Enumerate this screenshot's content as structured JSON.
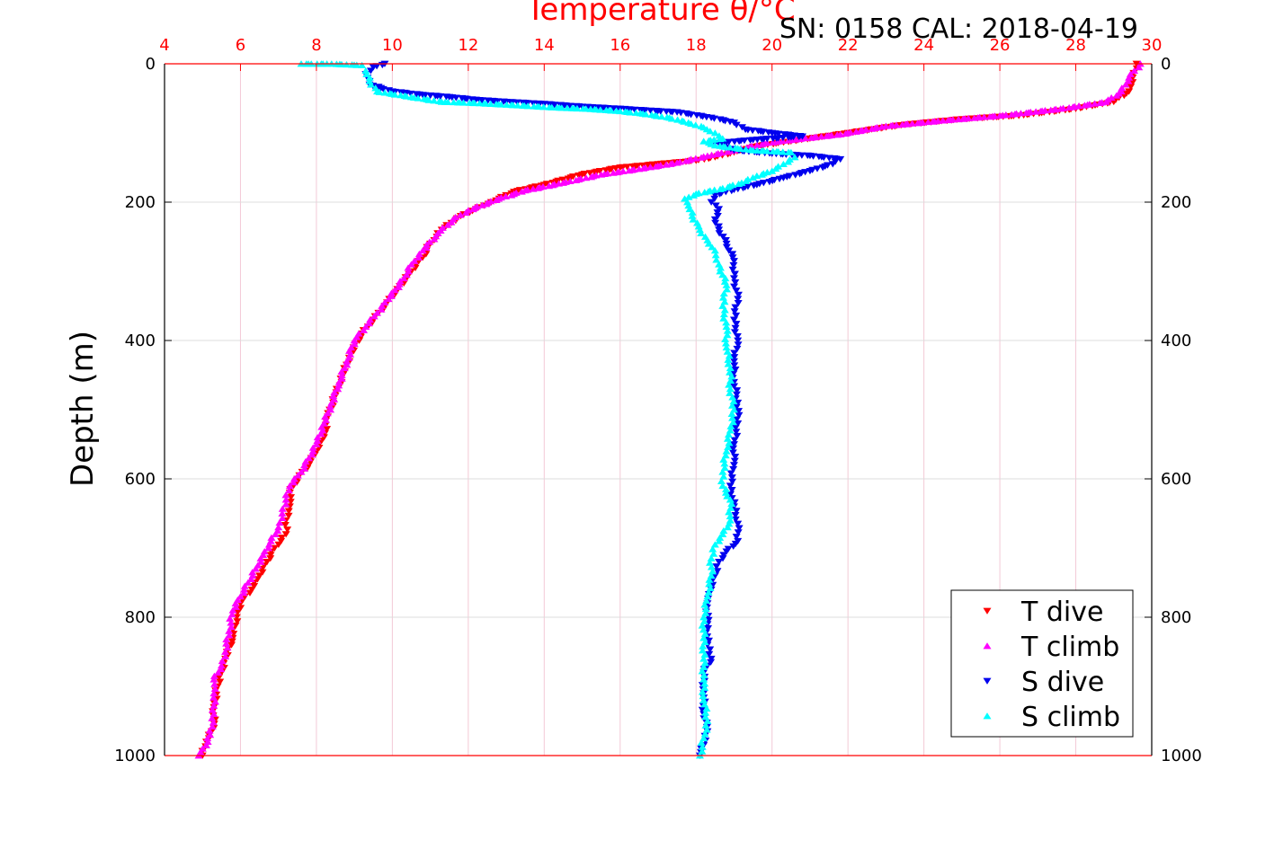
{
  "chart_data": {
    "type": "scatter",
    "title": "Temperature θ/°C",
    "subtitle": "SN: 0158  CAL: 2018-04-19",
    "xlabel": "Temperature θ/°C",
    "ylabel": "Depth (m)",
    "xlim": [
      4,
      30
    ],
    "ylim": [
      1000,
      0
    ],
    "x_ticks": [
      "4",
      "6",
      "8",
      "10",
      "12",
      "14",
      "16",
      "18",
      "20",
      "22",
      "24",
      "26",
      "28",
      "30"
    ],
    "y_ticks": [
      "0",
      "200",
      "400",
      "600",
      "800",
      "1000"
    ],
    "y_ticks_right": [
      "0",
      "200",
      "400",
      "600",
      "800",
      "1000"
    ],
    "grid": true,
    "legend_position": "bottom-right",
    "series": [
      {
        "name": "T dive",
        "color": "#ff0000",
        "marker": "triangle-down",
        "points": [
          [
            29.6,
            0
          ],
          [
            29.5,
            20
          ],
          [
            29.4,
            40
          ],
          [
            29.0,
            55
          ],
          [
            28.0,
            65
          ],
          [
            26.5,
            75
          ],
          [
            25.0,
            80
          ],
          [
            23.5,
            88
          ],
          [
            22.0,
            100
          ],
          [
            21.0,
            108
          ],
          [
            20.5,
            112
          ],
          [
            19.5,
            120
          ],
          [
            19.0,
            128
          ],
          [
            18.5,
            135
          ],
          [
            18.0,
            140
          ],
          [
            17.0,
            145
          ],
          [
            16.0,
            150
          ],
          [
            15.0,
            160
          ],
          [
            14.0,
            175
          ],
          [
            13.2,
            185
          ],
          [
            12.6,
            200
          ],
          [
            12.2,
            210
          ],
          [
            11.8,
            220
          ],
          [
            11.3,
            240
          ],
          [
            11.0,
            260
          ],
          [
            10.8,
            280
          ],
          [
            10.5,
            300
          ],
          [
            10.1,
            330
          ],
          [
            9.8,
            350
          ],
          [
            9.5,
            370
          ],
          [
            9.2,
            390
          ],
          [
            8.9,
            420
          ],
          [
            8.7,
            450
          ],
          [
            8.5,
            480
          ],
          [
            8.3,
            510
          ],
          [
            8.2,
            540
          ],
          [
            8.0,
            560
          ],
          [
            7.8,
            580
          ],
          [
            7.5,
            600
          ],
          [
            7.3,
            620
          ],
          [
            7.3,
            640
          ],
          [
            7.2,
            660
          ],
          [
            7.2,
            680
          ],
          [
            6.9,
            700
          ],
          [
            6.7,
            720
          ],
          [
            6.5,
            740
          ],
          [
            6.3,
            760
          ],
          [
            6.0,
            780
          ],
          [
            5.9,
            800
          ],
          [
            5.8,
            830
          ],
          [
            5.6,
            860
          ],
          [
            5.5,
            880
          ],
          [
            5.4,
            900
          ],
          [
            5.3,
            930
          ],
          [
            5.3,
            960
          ],
          [
            5.1,
            980
          ],
          [
            5.0,
            1000
          ]
        ]
      },
      {
        "name": "T climb",
        "color": "#ff00ff",
        "marker": "triangle-up",
        "points": [
          [
            29.7,
            0
          ],
          [
            29.4,
            20
          ],
          [
            29.2,
            40
          ],
          [
            28.8,
            55
          ],
          [
            27.6,
            65
          ],
          [
            26.0,
            75
          ],
          [
            24.5,
            82
          ],
          [
            23.0,
            90
          ],
          [
            21.8,
            102
          ],
          [
            20.5,
            110
          ],
          [
            19.8,
            115
          ],
          [
            19.0,
            125
          ],
          [
            18.3,
            133
          ],
          [
            17.5,
            143
          ],
          [
            16.5,
            152
          ],
          [
            15.5,
            160
          ],
          [
            14.5,
            172
          ],
          [
            13.5,
            183
          ],
          [
            12.8,
            195
          ],
          [
            12.0,
            212
          ],
          [
            11.6,
            225
          ],
          [
            11.2,
            245
          ],
          [
            10.8,
            270
          ],
          [
            10.5,
            290
          ],
          [
            10.3,
            310
          ],
          [
            9.9,
            340
          ],
          [
            9.6,
            360
          ],
          [
            9.3,
            380
          ],
          [
            9.0,
            400
          ],
          [
            8.8,
            430
          ],
          [
            8.6,
            460
          ],
          [
            8.4,
            490
          ],
          [
            8.2,
            520
          ],
          [
            8.0,
            550
          ],
          [
            7.8,
            570
          ],
          [
            7.6,
            590
          ],
          [
            7.3,
            610
          ],
          [
            7.2,
            630
          ],
          [
            7.1,
            650
          ],
          [
            7.0,
            670
          ],
          [
            6.8,
            690
          ],
          [
            6.6,
            710
          ],
          [
            6.4,
            730
          ],
          [
            6.2,
            750
          ],
          [
            6.0,
            770
          ],
          [
            5.8,
            790
          ],
          [
            5.7,
            820
          ],
          [
            5.6,
            850
          ],
          [
            5.5,
            870
          ],
          [
            5.3,
            890
          ],
          [
            5.3,
            910
          ],
          [
            5.3,
            940
          ],
          [
            5.2,
            970
          ],
          [
            5.1,
            985
          ],
          [
            4.9,
            1000
          ]
        ]
      },
      {
        "name": "S dive",
        "color": "#0000ee",
        "marker": "triangle-down",
        "points": [
          [
            9.8,
            0
          ],
          [
            9.5,
            5
          ],
          [
            9.3,
            15
          ],
          [
            9.4,
            30
          ],
          [
            10.0,
            40
          ],
          [
            10.8,
            45
          ],
          [
            11.5,
            48
          ],
          [
            12.2,
            52
          ],
          [
            13.0,
            55
          ],
          [
            14.0,
            58
          ],
          [
            15.0,
            62
          ],
          [
            16.0,
            65
          ],
          [
            17.5,
            70
          ],
          [
            18.4,
            78
          ],
          [
            19.0,
            85
          ],
          [
            19.3,
            95
          ],
          [
            20.0,
            100
          ],
          [
            20.8,
            105
          ],
          [
            19.5,
            110
          ],
          [
            18.5,
            115
          ],
          [
            19.0,
            125
          ],
          [
            20.0,
            130
          ],
          [
            21.0,
            133
          ],
          [
            21.8,
            138
          ],
          [
            21.6,
            145
          ],
          [
            21.0,
            155
          ],
          [
            20.3,
            165
          ],
          [
            19.6,
            175
          ],
          [
            19.0,
            182
          ],
          [
            18.5,
            190
          ],
          [
            18.4,
            200
          ],
          [
            18.6,
            210
          ],
          [
            18.5,
            225
          ],
          [
            18.6,
            240
          ],
          [
            18.8,
            260
          ],
          [
            19.0,
            285
          ],
          [
            19.0,
            310
          ],
          [
            19.1,
            340
          ],
          [
            19.0,
            370
          ],
          [
            19.1,
            400
          ],
          [
            19.0,
            430
          ],
          [
            19.0,
            460
          ],
          [
            19.1,
            490
          ],
          [
            19.1,
            520
          ],
          [
            19.0,
            550
          ],
          [
            19.0,
            580
          ],
          [
            18.9,
            610
          ],
          [
            19.0,
            640
          ],
          [
            19.1,
            665
          ],
          [
            19.1,
            690
          ],
          [
            18.8,
            705
          ],
          [
            18.6,
            720
          ],
          [
            18.5,
            740
          ],
          [
            18.4,
            760
          ],
          [
            18.3,
            780
          ],
          [
            18.3,
            810
          ],
          [
            18.3,
            840
          ],
          [
            18.4,
            860
          ],
          [
            18.2,
            880
          ],
          [
            18.2,
            910
          ],
          [
            18.2,
            940
          ],
          [
            18.3,
            965
          ],
          [
            18.2,
            985
          ],
          [
            18.1,
            1000
          ]
        ]
      },
      {
        "name": "S climb",
        "color": "#00ffff",
        "marker": "triangle-up",
        "points": [
          [
            7.6,
            0
          ],
          [
            8.4,
            0
          ],
          [
            9.2,
            2
          ],
          [
            9.3,
            10
          ],
          [
            9.4,
            25
          ],
          [
            9.6,
            40
          ],
          [
            10.5,
            48
          ],
          [
            11.3,
            55
          ],
          [
            12.3,
            57
          ],
          [
            13.3,
            60
          ],
          [
            14.2,
            63
          ],
          [
            15.1,
            65
          ],
          [
            15.9,
            68
          ],
          [
            16.6,
            72
          ],
          [
            17.3,
            78
          ],
          [
            17.8,
            85
          ],
          [
            18.2,
            92
          ],
          [
            18.5,
            100
          ],
          [
            18.7,
            108
          ],
          [
            18.2,
            112
          ],
          [
            18.5,
            118
          ],
          [
            19.5,
            125
          ],
          [
            20.5,
            128
          ],
          [
            20.6,
            135
          ],
          [
            20.3,
            145
          ],
          [
            20.0,
            155
          ],
          [
            19.6,
            162
          ],
          [
            19.2,
            172
          ],
          [
            18.7,
            180
          ],
          [
            18.0,
            188
          ],
          [
            17.7,
            195
          ],
          [
            17.8,
            205
          ],
          [
            17.9,
            220
          ],
          [
            18.1,
            240
          ],
          [
            18.3,
            255
          ],
          [
            18.5,
            270
          ],
          [
            18.6,
            290
          ],
          [
            18.8,
            320
          ],
          [
            18.7,
            350
          ],
          [
            18.8,
            380
          ],
          [
            18.8,
            410
          ],
          [
            18.9,
            440
          ],
          [
            18.9,
            470
          ],
          [
            19.0,
            500
          ],
          [
            18.9,
            530
          ],
          [
            18.8,
            560
          ],
          [
            18.7,
            590
          ],
          [
            18.7,
            610
          ],
          [
            18.9,
            630
          ],
          [
            18.9,
            660
          ],
          [
            18.7,
            680
          ],
          [
            18.5,
            695
          ],
          [
            18.4,
            715
          ],
          [
            18.4,
            740
          ],
          [
            18.3,
            770
          ],
          [
            18.2,
            800
          ],
          [
            18.2,
            830
          ],
          [
            18.2,
            860
          ],
          [
            18.2,
            890
          ],
          [
            18.2,
            920
          ],
          [
            18.3,
            950
          ],
          [
            18.2,
            975
          ],
          [
            18.1,
            1000
          ]
        ]
      }
    ]
  }
}
